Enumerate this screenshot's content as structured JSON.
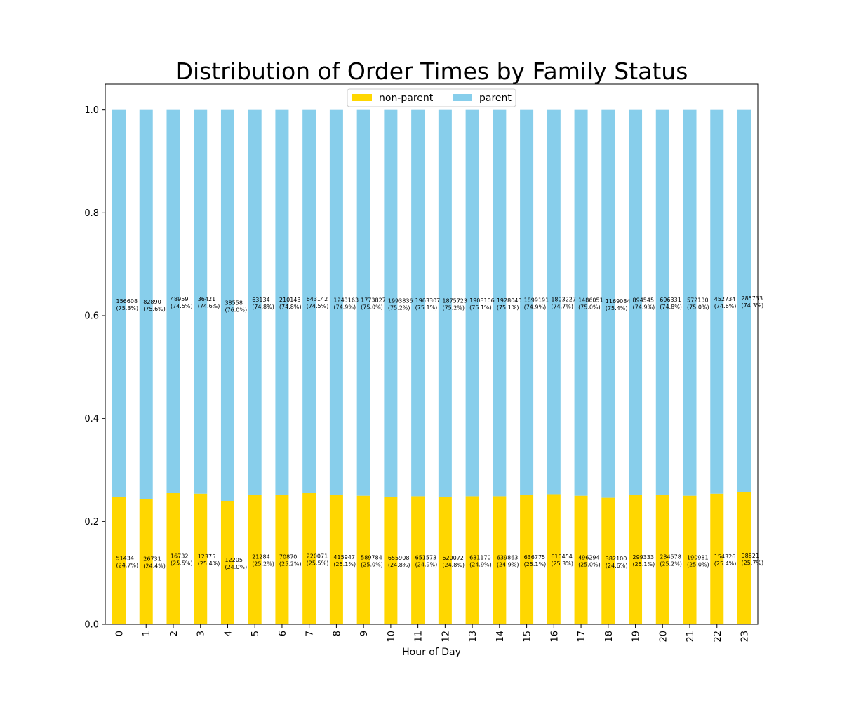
{
  "chart_data": {
    "type": "bar",
    "stacked": true,
    "title": "Distribution of Order Times by Family Status",
    "xlabel": "Hour of Day",
    "ylabel": "",
    "ylim": [
      0,
      1.05
    ],
    "yticks": [
      "0.0",
      "0.2",
      "0.4",
      "0.6",
      "0.8",
      "1.0"
    ],
    "grid": false,
    "legend_position": "top-center",
    "categories": [
      "0",
      "1",
      "2",
      "3",
      "4",
      "5",
      "6",
      "7",
      "8",
      "9",
      "10",
      "11",
      "12",
      "13",
      "14",
      "15",
      "16",
      "17",
      "18",
      "19",
      "20",
      "21",
      "22",
      "23"
    ],
    "series": [
      {
        "name": "non-parent",
        "color": "#FFD700",
        "counts": [
          51434,
          26731,
          16732,
          12375,
          12205,
          21284,
          70870,
          220071,
          415947,
          589784,
          655908,
          651573,
          620072,
          631170,
          639863,
          636775,
          610454,
          496294,
          382100,
          299333,
          234578,
          190981,
          154326,
          98821
        ],
        "percent_labels": [
          "(24.7%)",
          "(24.4%)",
          "(25.5%)",
          "(25.4%)",
          "(24.0%)",
          "(25.2%)",
          "(25.2%)",
          "(25.5%)",
          "(25.1%)",
          "(25.0%)",
          "(24.8%)",
          "(24.9%)",
          "(24.8%)",
          "(24.9%)",
          "(24.9%)",
          "(25.1%)",
          "(25.3%)",
          "(25.0%)",
          "(24.6%)",
          "(25.1%)",
          "(25.2%)",
          "(25.0%)",
          "(25.4%)",
          "(25.7%)"
        ],
        "values": [
          0.247,
          0.244,
          0.255,
          0.254,
          0.24,
          0.252,
          0.252,
          0.255,
          0.251,
          0.25,
          0.248,
          0.249,
          0.248,
          0.249,
          0.249,
          0.251,
          0.253,
          0.25,
          0.246,
          0.251,
          0.252,
          0.25,
          0.254,
          0.257
        ]
      },
      {
        "name": "parent",
        "color": "#87CEEB",
        "counts": [
          156608,
          82890,
          48959,
          36421,
          38558,
          63134,
          210143,
          643142,
          1243163,
          1773827,
          1993836,
          1963307,
          1875723,
          1908106,
          1928040,
          1899191,
          1803227,
          1486051,
          1169084,
          894545,
          696331,
          572130,
          452734,
          285733
        ],
        "percent_labels": [
          "(75.3%)",
          "(75.6%)",
          "(74.5%)",
          "(74.6%)",
          "(76.0%)",
          "(74.8%)",
          "(74.8%)",
          "(74.5%)",
          "(74.9%)",
          "(75.0%)",
          "(75.2%)",
          "(75.1%)",
          "(75.2%)",
          "(75.1%)",
          "(75.1%)",
          "(74.9%)",
          "(74.7%)",
          "(75.0%)",
          "(75.4%)",
          "(74.9%)",
          "(74.8%)",
          "(75.0%)",
          "(74.6%)",
          "(74.3%)"
        ],
        "values": [
          0.753,
          0.756,
          0.745,
          0.746,
          0.76,
          0.748,
          0.748,
          0.745,
          0.749,
          0.75,
          0.752,
          0.751,
          0.752,
          0.751,
          0.751,
          0.749,
          0.747,
          0.75,
          0.754,
          0.749,
          0.748,
          0.75,
          0.746,
          0.743
        ]
      }
    ]
  }
}
